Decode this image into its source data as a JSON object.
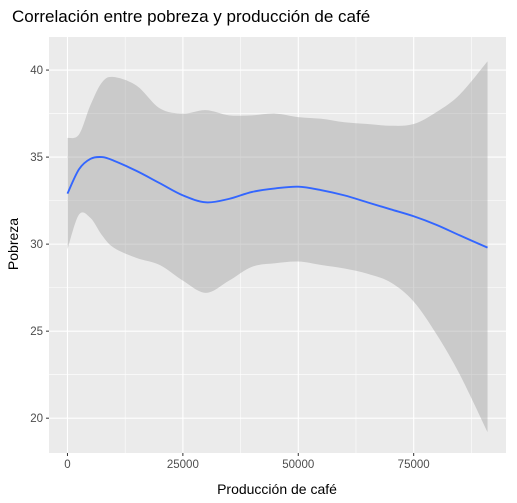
{
  "chart_data": {
    "type": "line",
    "title": "Correlación entre pobreza y producción de café",
    "xlabel": "Producción de café",
    "ylabel": "Pobreza",
    "xlim": [
      -4000,
      95000
    ],
    "ylim": [
      18,
      41.9
    ],
    "x_ticks": [
      0,
      25000,
      50000,
      75000
    ],
    "x_tick_labels": [
      "0",
      "25000",
      "50000",
      "75000"
    ],
    "y_ticks": [
      20,
      25,
      30,
      35,
      40
    ],
    "y_tick_labels": [
      "20",
      "25",
      "30",
      "35",
      "40"
    ],
    "grid": true,
    "legend": "none",
    "colors": {
      "panel": "#ebebeb",
      "grid": "#ffffff",
      "line": "#3366ff",
      "band": "#999999"
    },
    "series": [
      {
        "type": "smooth",
        "x": [
          0,
          2500,
          5000,
          7500,
          10000,
          15000,
          20000,
          25000,
          30000,
          35000,
          40000,
          45000,
          50000,
          55000,
          60000,
          65000,
          70000,
          75000,
          80000,
          85000,
          91000
        ],
        "y": [
          32.9,
          34.3,
          34.9,
          35.0,
          34.8,
          34.2,
          33.5,
          32.8,
          32.4,
          32.6,
          33.0,
          33.2,
          33.3,
          33.1,
          32.8,
          32.4,
          32.0,
          31.6,
          31.1,
          30.5,
          29.8
        ],
        "lower": [
          29.7,
          31.7,
          31.5,
          30.5,
          29.8,
          29.2,
          28.8,
          27.9,
          27.2,
          27.9,
          28.7,
          28.9,
          29.0,
          28.8,
          28.6,
          28.3,
          27.8,
          26.7,
          24.8,
          22.5,
          19.2
        ],
        "upper": [
          36.1,
          36.3,
          38.0,
          39.3,
          39.6,
          39.1,
          37.8,
          37.5,
          37.7,
          37.4,
          37.4,
          37.5,
          37.3,
          37.2,
          37.0,
          36.9,
          36.8,
          36.9,
          37.6,
          38.6,
          40.5
        ]
      }
    ]
  }
}
